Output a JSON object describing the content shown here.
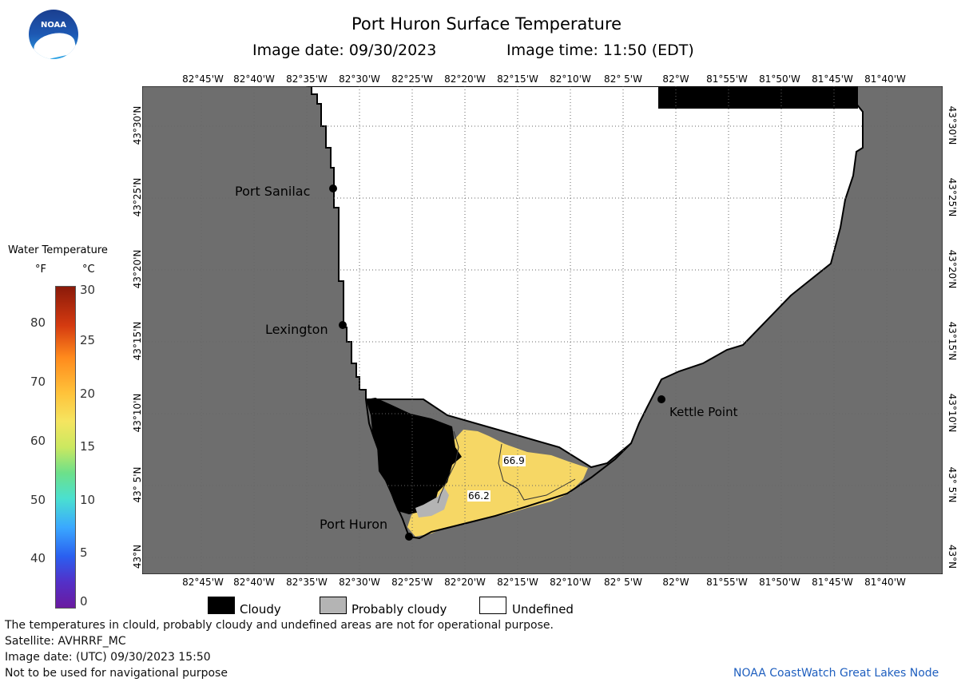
{
  "header": {
    "title": "Port Huron Surface Temperature",
    "image_date": "Image date: 09/30/2023",
    "image_time": "Image time: 11:50 (EDT)"
  },
  "logo": {
    "text": "NOAA"
  },
  "map": {
    "lon_labels": [
      "82°45'W",
      "82°40'W",
      "82°35'W",
      "82°30'W",
      "82°25'W",
      "82°20'W",
      "82°15'W",
      "82°10'W",
      "82° 5'W",
      "82°W",
      "81°55'W",
      "81°50'W",
      "81°45'W",
      "81°40'W"
    ],
    "lat_labels": [
      "43°30'N",
      "43°25'N",
      "43°20'N",
      "43°15'N",
      "43°10'N",
      "43° 5'N",
      "43°N"
    ],
    "places": [
      {
        "name": "Port Sanilac"
      },
      {
        "name": "Lexington"
      },
      {
        "name": "Kettle Point"
      },
      {
        "name": "Port Huron"
      }
    ],
    "contour_labels": [
      "66.9",
      "66.2"
    ],
    "colors": {
      "land": "#6e6e6e",
      "cloud": "#000000",
      "water_warm": "#f6d765",
      "undefined": "#ffffff"
    }
  },
  "colorbar": {
    "title": "Water Temperature",
    "unit_f": "°F",
    "unit_c": "°C",
    "f_ticks": [
      "80",
      "70",
      "60",
      "50",
      "40"
    ],
    "c_ticks": [
      "30",
      "25",
      "20",
      "15",
      "10",
      "5",
      "0"
    ]
  },
  "key": {
    "cloudy": "Cloudy",
    "probably_cloudy": "Probably cloudy",
    "undefined": "Undefined"
  },
  "footer": {
    "line1": "The temperatures in clould, probably cloudy and undefined areas are not for operational purpose.",
    "line2": "Satellite: AVHRRF_MC",
    "line3": "Image date: (UTC) 09/30/2023  15:50",
    "line4": "Not to be used for navigational purpose",
    "credit": "NOAA CoastWatch Great Lakes Node"
  }
}
